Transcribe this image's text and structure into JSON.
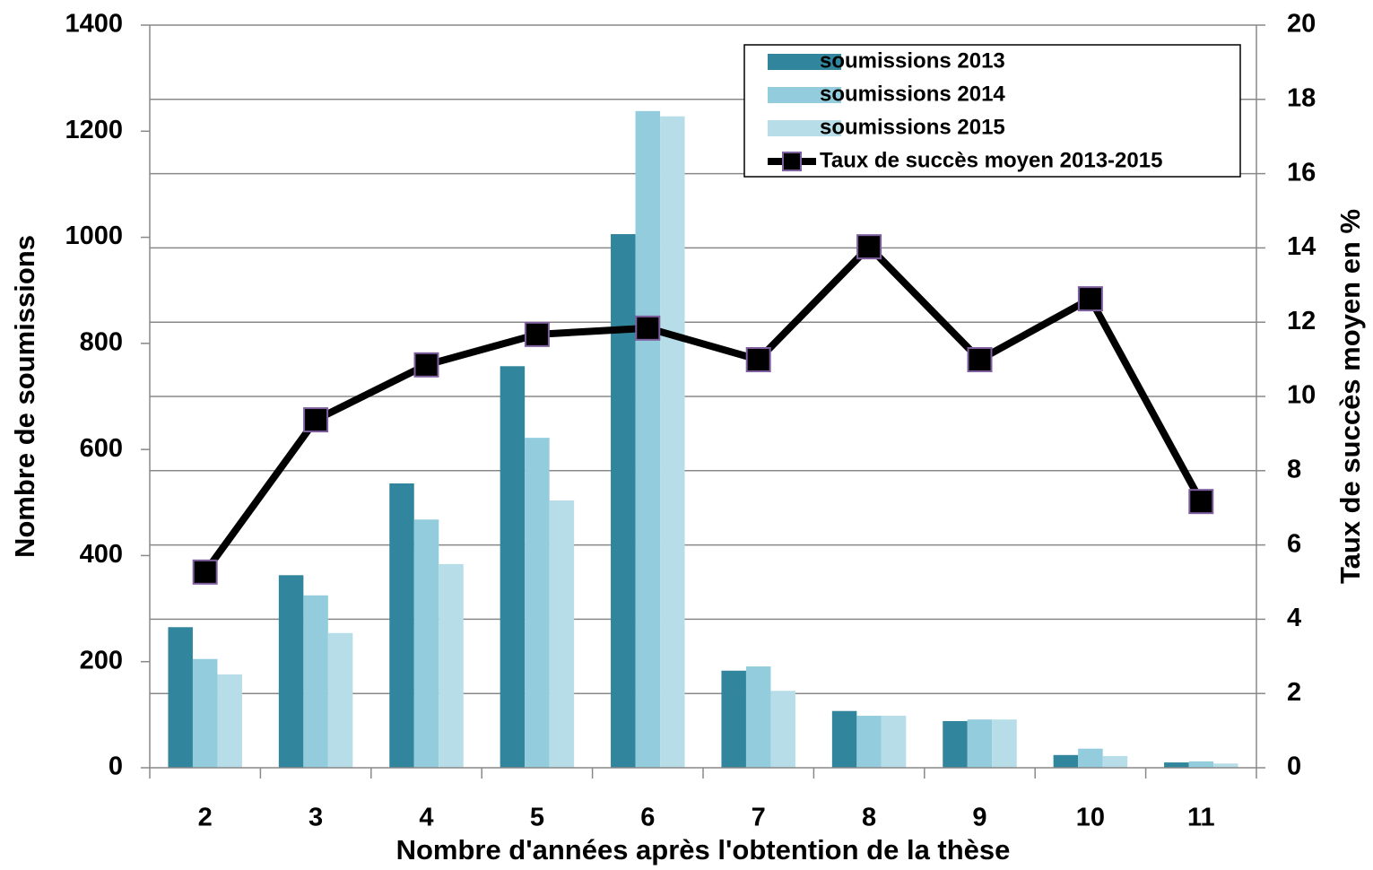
{
  "chart_data": {
    "type": "bar",
    "x_label": "Nombre d'années après l'obtention de la thèse",
    "y_label": "Nombre de soumissions",
    "y2_label": "Taux de succès moyen en %",
    "categories": [
      "2",
      "3",
      "4",
      "5",
      "6",
      "7",
      "8",
      "9",
      "10",
      "11"
    ],
    "series": [
      {
        "name": "soumissions 2013",
        "type": "bar",
        "color": "#31859c",
        "values": [
          265,
          363,
          536,
          757,
          1006,
          183,
          107,
          88,
          24,
          10
        ]
      },
      {
        "name": "soumissions 2014",
        "type": "bar",
        "color": "#93cddd",
        "values": [
          205,
          325,
          468,
          622,
          1238,
          191,
          98,
          91,
          36,
          12
        ]
      },
      {
        "name": "soumissions 2015",
        "type": "bar",
        "color": "#b7dee8",
        "values": [
          176,
          254,
          384,
          504,
          1228,
          145,
          98,
          91,
          22,
          8
        ]
      },
      {
        "name": "Taux de succès moyen 2013-2015",
        "type": "line",
        "axis": "y2",
        "color": "#000000",
        "values": [
          5.27,
          9.37,
          10.85,
          11.67,
          11.84,
          10.99,
          14.03,
          10.99,
          12.63,
          7.17
        ]
      }
    ],
    "ylim": [
      0,
      1400
    ],
    "yticks": [
      0,
      200,
      400,
      600,
      800,
      1000,
      1200,
      1400
    ],
    "y2lim": [
      0,
      20
    ],
    "y2ticks": [
      0,
      2,
      4,
      6,
      8,
      10,
      12,
      14,
      16,
      18,
      20
    ],
    "grid": true,
    "legend": "upper right"
  }
}
